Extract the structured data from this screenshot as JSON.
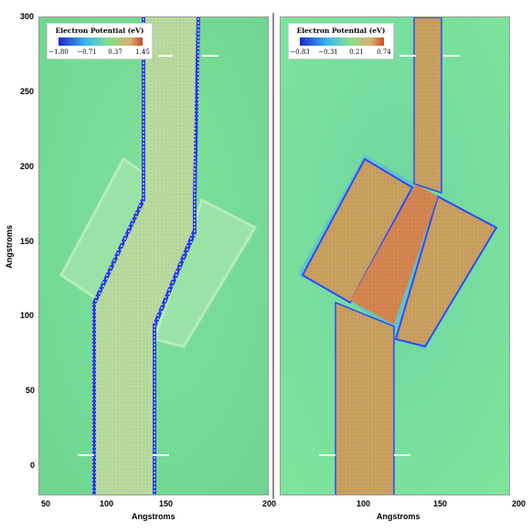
{
  "left_panel": {
    "legend_title": "Electron Potential (eV)",
    "legend_ticks": [
      "−1.80",
      "−0.71",
      "0.37",
      "1.45"
    ]
  },
  "right_panel": {
    "legend_title": "Electron Potential (eV)",
    "legend_ticks": [
      "−0.83",
      "−0.31",
      "0.21",
      "0.74"
    ]
  },
  "axes": {
    "y_label": "Angstroms",
    "x_label": "Angstroms",
    "y_ticks": [
      "300",
      "250",
      "200",
      "150",
      "100",
      "50",
      "0"
    ],
    "x_ticks_left": [
      "50",
      "100",
      "150",
      "200"
    ],
    "x_ticks_right": [
      "100",
      "150",
      "200"
    ]
  },
  "colors": {
    "background": "#7be09a",
    "left_ribbon": "#b8d99a",
    "right_ribbon_core": "#c99a5f",
    "right_ribbon_center": "#d0804f",
    "edge_blue": "#1a3fff",
    "marker": "#ffffff"
  }
}
